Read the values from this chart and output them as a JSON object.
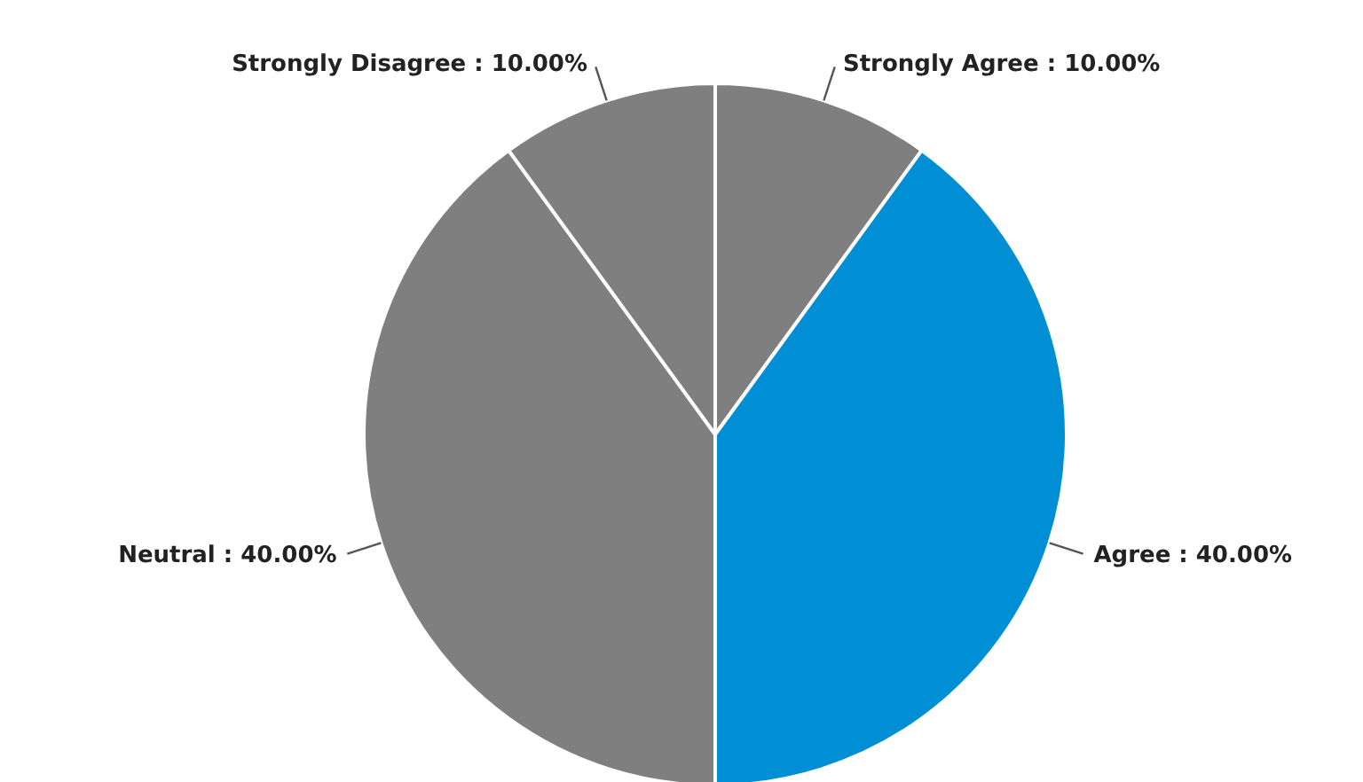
{
  "chart_data": {
    "type": "pie",
    "categories": [
      "Strongly Agree",
      "Agree",
      "Neutral",
      "Strongly Disagree"
    ],
    "values": [
      10,
      40,
      40,
      10
    ],
    "colors": [
      "#7f7f7f",
      "#008fd5",
      "#7f7f7f",
      "#7f7f7f"
    ],
    "value_labels": [
      "10.00%",
      "40.00%",
      "40.00%",
      "10.00%"
    ],
    "legend": false
  }
}
